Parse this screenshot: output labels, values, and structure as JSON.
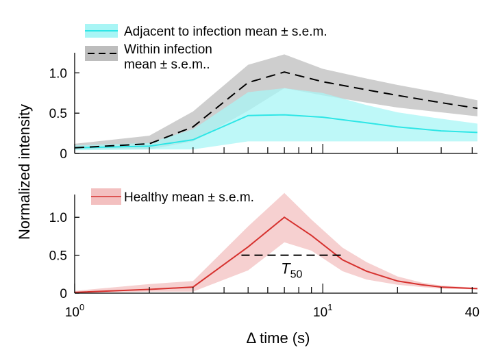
{
  "chart_data": {
    "type": "line",
    "x_scale": "log",
    "xlabel": "Δ time (s)",
    "ylabel": "Normalized intensity",
    "xlim": [
      1,
      42
    ],
    "x_ticks": [
      {
        "value": 1,
        "base": "10",
        "exp": "0"
      },
      {
        "value": 10,
        "base": "10",
        "exp": "1"
      },
      {
        "value": 40,
        "label": "40"
      }
    ],
    "panels": [
      {
        "id": "top",
        "ylim": [
          0,
          1.25
        ],
        "y_ticks": [
          {
            "value": 0,
            "label": "0"
          },
          {
            "value": 0.5,
            "label": "0.5"
          },
          {
            "value": 1.0,
            "label": "1.0"
          }
        ],
        "series": [
          {
            "name": "Adjacent to infection mean ± s.e.m.",
            "legend_label": "Adjacent to infection mean ± s.e.m.",
            "line_color": "#2ee6e6",
            "band_color": "#a8f5f5",
            "line_style": "solid",
            "x": [
              1,
              2,
              3,
              5,
              7,
              10,
              15,
              20,
              30,
              42
            ],
            "y": [
              0.07,
              0.09,
              0.17,
              0.47,
              0.48,
              0.45,
              0.38,
              0.33,
              0.28,
              0.26
            ],
            "lower": [
              0.04,
              0.05,
              0.05,
              0.15,
              0.15,
              0.15,
              0.15,
              0.15,
              0.15,
              0.15
            ],
            "upper": [
              0.1,
              0.13,
              0.3,
              0.76,
              0.81,
              0.75,
              0.6,
              0.51,
              0.43,
              0.37
            ]
          },
          {
            "name": "Within infection mean ± s.e.m..",
            "legend_label": [
              "Within infection",
              "mean ± s.e.m.."
            ],
            "line_color": "#000000",
            "band_color": "#bdbdbd",
            "line_style": "dashed",
            "x": [
              1,
              2,
              3,
              5,
              7,
              10,
              15,
              20,
              30,
              42
            ],
            "y": [
              0.07,
              0.12,
              0.33,
              0.88,
              1.01,
              0.89,
              0.79,
              0.72,
              0.63,
              0.56
            ],
            "lower": [
              0.05,
              0.05,
              0.15,
              0.53,
              0.81,
              0.72,
              0.63,
              0.57,
              0.51,
              0.46
            ],
            "upper": [
              0.12,
              0.22,
              0.52,
              1.1,
              1.23,
              1.05,
              0.93,
              0.85,
              0.75,
              0.66
            ]
          }
        ]
      },
      {
        "id": "bottom",
        "ylim": [
          0,
          1.3
        ],
        "y_ticks": [
          {
            "value": 0,
            "label": "0"
          },
          {
            "value": 0.5,
            "label": "0.5"
          },
          {
            "value": 1.0,
            "label": "1.0"
          }
        ],
        "series": [
          {
            "name": "Healthy mean ± s.e.m.",
            "legend_label": "Healthy mean ± s.e.m.",
            "line_color": "#d6312e",
            "band_color": "#f3c0c0",
            "line_style": "solid",
            "x": [
              1,
              2,
              3,
              5,
              7,
              9,
              12,
              15,
              20,
              25,
              30,
              42
            ],
            "y": [
              0.01,
              0.05,
              0.08,
              0.61,
              1.0,
              0.76,
              0.44,
              0.29,
              0.16,
              0.11,
              0.08,
              0.06
            ],
            "lower": [
              0.0,
              0.02,
              0.02,
              0.3,
              0.67,
              0.56,
              0.29,
              0.18,
              0.11,
              0.08,
              0.06,
              0.05
            ],
            "upper": [
              0.03,
              0.12,
              0.16,
              0.88,
              1.32,
              0.97,
              0.6,
              0.41,
              0.22,
              0.14,
              0.1,
              0.07
            ]
          }
        ],
        "annotations": [
          {
            "type": "hline",
            "style": "dashed",
            "y": 0.5,
            "x_start": 4.7,
            "x_end": 12.3,
            "label": "T",
            "subscript": "50"
          }
        ]
      }
    ]
  }
}
